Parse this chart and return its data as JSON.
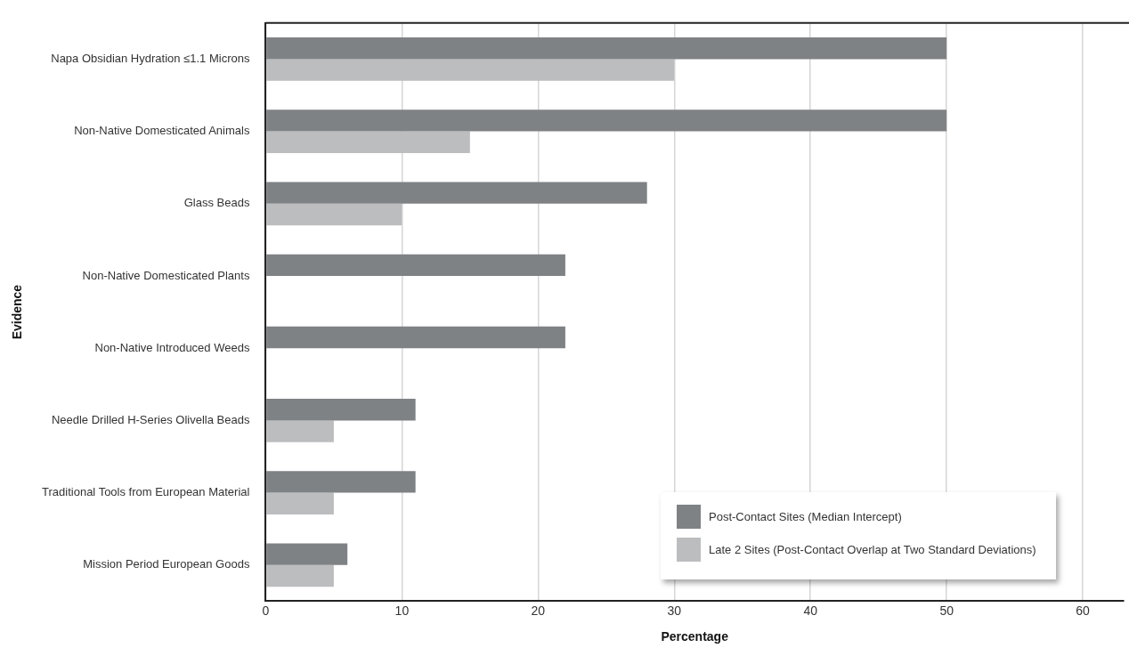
{
  "chart_data": {
    "type": "bar",
    "orientation": "horizontal",
    "xlabel": "Percentage",
    "ylabel": "Evidence",
    "categories": [
      "Napa Obsidian Hydration ≤1.1 Microns",
      "Non-Native Domesticated Animals",
      "Glass Beads",
      "Non-Native Domesticated Plants",
      "Non-Native Introduced Weeds",
      "Needle Drilled H-Series Olivella Beads",
      "Traditional Tools from European Material",
      "Mission Period European Goods"
    ],
    "series": [
      {
        "name": "Post-Contact Sites (Median Intercept)",
        "color": "#7f8285",
        "values": [
          50,
          50,
          28,
          22,
          22,
          11,
          11,
          6
        ]
      },
      {
        "name": "Late 2 Sites (Post-Contact Overlap at Two Standard Deviations)",
        "color": "#bcbdbf",
        "values": [
          30,
          15,
          10,
          null,
          null,
          5,
          5,
          5
        ]
      }
    ],
    "xlim": [
      0,
      63
    ],
    "xticks": [
      0,
      10,
      20,
      30,
      40,
      50,
      60
    ],
    "grid": "x",
    "legend": "bottom right"
  }
}
